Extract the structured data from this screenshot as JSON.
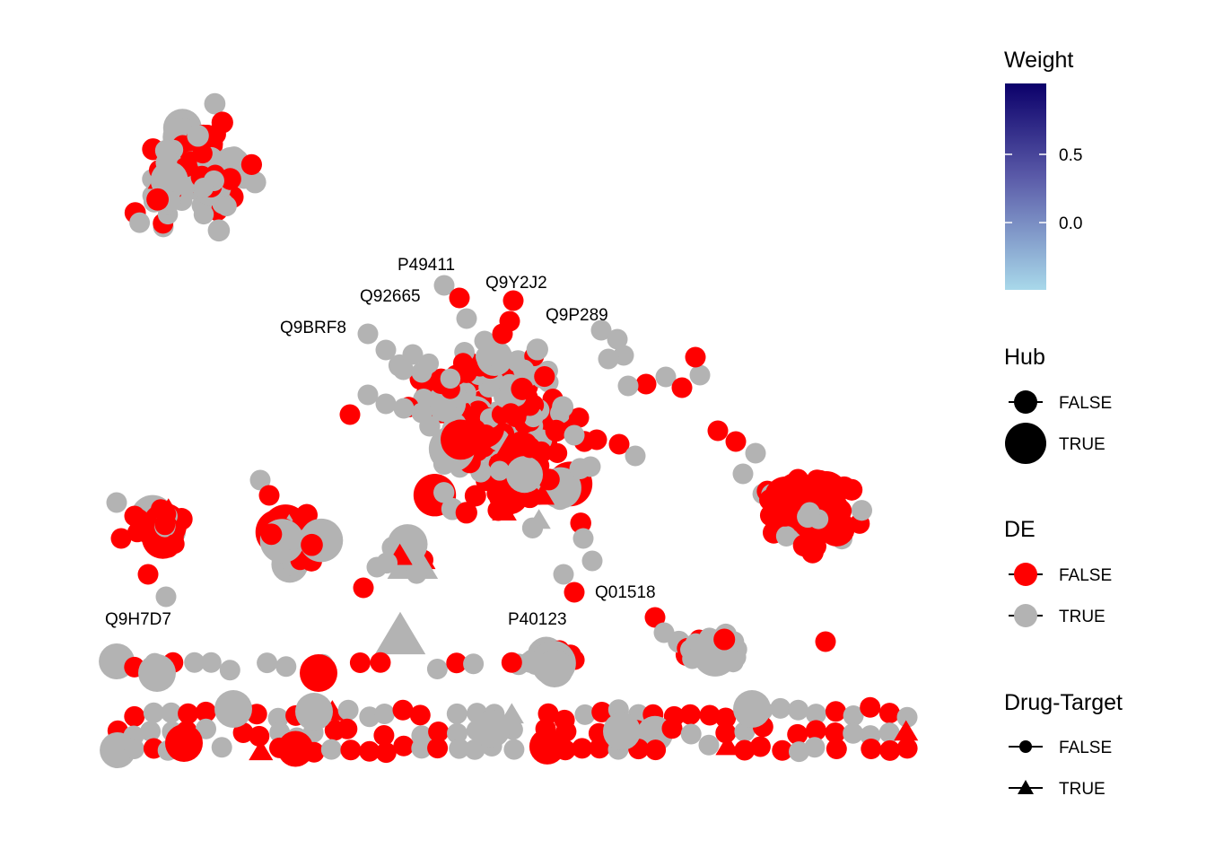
{
  "network": {
    "node_labels": [
      "P49411",
      "Q9Y2J2",
      "Q92665",
      "Q9P289",
      "Q9BRF8",
      "Q01518",
      "Q9H7D7",
      "P40123"
    ],
    "colors": {
      "de_false": "#ff0000",
      "de_true": "#b3b3b3",
      "edge_high": "#1a0070"
    }
  },
  "legend": {
    "weight": {
      "title": "Weight",
      "ticks": [
        "0.5",
        "0.0"
      ],
      "gradient_colors": [
        "#0b006a",
        "#5a5aa8",
        "#a8d8ea"
      ]
    },
    "hub": {
      "title": "Hub",
      "items": [
        "FALSE",
        "TRUE"
      ]
    },
    "de": {
      "title": "DE",
      "items": [
        "FALSE",
        "TRUE"
      ]
    },
    "drug_target": {
      "title": "Drug-Target",
      "items": [
        "FALSE",
        "TRUE"
      ]
    }
  }
}
